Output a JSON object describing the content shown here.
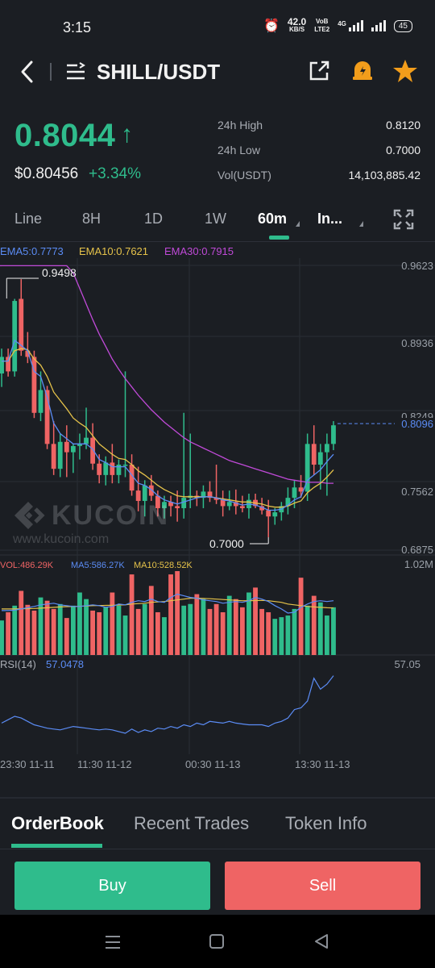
{
  "status_bar": {
    "time": "3:15",
    "net_speed": "42.0",
    "net_unit": "KB/S",
    "volte_top": "VoB",
    "volte_bottom": "LTE2",
    "network": "4G",
    "battery": "45"
  },
  "header": {
    "pair": "SHILL/USDT"
  },
  "ticker": {
    "last_price": "0.8044",
    "usd_price": "$0.80456",
    "change": "+3.34%",
    "high_label": "24h High",
    "high_value": "0.8120",
    "low_label": "24h Low",
    "low_value": "0.7000",
    "vol_label": "Vol(USDT)",
    "vol_value": "14,103,885.42"
  },
  "timeframes": [
    {
      "label": "Line"
    },
    {
      "label": "8H"
    },
    {
      "label": "1D"
    },
    {
      "label": "1W"
    },
    {
      "label": "60m"
    },
    {
      "label": "In..."
    }
  ],
  "indicators": {
    "ema5": "EMA5:0.7773",
    "ema10": "EMA10:0.7621",
    "ema30": "EMA30:0.7915",
    "high_marker": "0.9498",
    "low_marker": "0.7000",
    "watermark": "KUCOIN",
    "watermark_url": "www.kucoin.com",
    "vol": "VOL:486.29K",
    "ma5": "MA5:586.27K",
    "ma10": "MA10:528.52K",
    "vol_max": "1.02M",
    "rsi_label": "RSI(14)",
    "rsi_value": "57.0478",
    "rsi_axis": "57.05"
  },
  "price_axis": [
    "0.9623",
    "0.8936",
    "0.8249",
    "0.7562",
    "0.6875"
  ],
  "current_price_tag": "0.8096",
  "time_axis": [
    "23:30 11-11",
    "11:30 11-12",
    "00:30 11-13",
    "13:30 11-13"
  ],
  "orderbook_tabs": [
    "OrderBook",
    "Recent Trades",
    "Token Info"
  ],
  "actions": {
    "buy": "Buy",
    "sell": "Sell"
  },
  "colors": {
    "up": "#2fbc8c",
    "down": "#ef6464",
    "ema5": "#5b8cf5",
    "ema10": "#e6c34a",
    "ema30": "#c04ad8",
    "background": "#1b1e23"
  },
  "chart_data": {
    "type": "candlestick",
    "price_axis_range": [
      0.6875,
      0.9623
    ],
    "candles_ohlc": [
      [
        0.858,
        0.882,
        0.845,
        0.874
      ],
      [
        0.874,
        0.882,
        0.855,
        0.86
      ],
      [
        0.86,
        0.93,
        0.855,
        0.928
      ],
      [
        0.93,
        0.949,
        0.875,
        0.88
      ],
      [
        0.88,
        0.898,
        0.868,
        0.874
      ],
      [
        0.874,
        0.88,
        0.815,
        0.82
      ],
      [
        0.82,
        0.86,
        0.812,
        0.842
      ],
      [
        0.842,
        0.846,
        0.785,
        0.79
      ],
      [
        0.79,
        0.812,
        0.76,
        0.766
      ],
      [
        0.766,
        0.8,
        0.758,
        0.792
      ],
      [
        0.792,
        0.808,
        0.758,
        0.782
      ],
      [
        0.782,
        0.79,
        0.762,
        0.788
      ],
      [
        0.788,
        0.8,
        0.775,
        0.79
      ],
      [
        0.79,
        0.825,
        0.785,
        0.796
      ],
      [
        0.796,
        0.81,
        0.765,
        0.771
      ],
      [
        0.771,
        0.78,
        0.752,
        0.76
      ],
      [
        0.76,
        0.778,
        0.75,
        0.772
      ],
      [
        0.772,
        0.79,
        0.752,
        0.76
      ],
      [
        0.76,
        0.775,
        0.752,
        0.77
      ],
      [
        0.77,
        0.86,
        0.758,
        0.77
      ],
      [
        0.77,
        0.78,
        0.74,
        0.745
      ],
      [
        0.745,
        0.768,
        0.725,
        0.735
      ],
      [
        0.735,
        0.755,
        0.72,
        0.75
      ],
      [
        0.75,
        0.76,
        0.735,
        0.74
      ],
      [
        0.74,
        0.745,
        0.72,
        0.728
      ],
      [
        0.728,
        0.74,
        0.718,
        0.734
      ],
      [
        0.734,
        0.74,
        0.72,
        0.73
      ],
      [
        0.73,
        0.745,
        0.715,
        0.728
      ],
      [
        0.728,
        0.82,
        0.718,
        0.738
      ],
      [
        0.738,
        0.8,
        0.728,
        0.74
      ],
      [
        0.74,
        0.745,
        0.73,
        0.738
      ],
      [
        0.738,
        0.75,
        0.728,
        0.744
      ],
      [
        0.744,
        0.754,
        0.734,
        0.738
      ],
      [
        0.738,
        0.77,
        0.732,
        0.736
      ],
      [
        0.736,
        0.745,
        0.72,
        0.73
      ],
      [
        0.73,
        0.745,
        0.726,
        0.734
      ],
      [
        0.734,
        0.746,
        0.722,
        0.73
      ],
      [
        0.73,
        0.74,
        0.724,
        0.728
      ],
      [
        0.728,
        0.742,
        0.718,
        0.736
      ],
      [
        0.736,
        0.742,
        0.728,
        0.73
      ],
      [
        0.73,
        0.738,
        0.722,
        0.726
      ],
      [
        0.726,
        0.736,
        0.7,
        0.72
      ],
      [
        0.72,
        0.728,
        0.712,
        0.724
      ],
      [
        0.724,
        0.734,
        0.716,
        0.73
      ],
      [
        0.73,
        0.748,
        0.722,
        0.738
      ],
      [
        0.738,
        0.755,
        0.728,
        0.748
      ],
      [
        0.748,
        0.76,
        0.738,
        0.744
      ],
      [
        0.744,
        0.8,
        0.735,
        0.79
      ],
      [
        0.79,
        0.808,
        0.76,
        0.77
      ],
      [
        0.77,
        0.79,
        0.746,
        0.782
      ],
      [
        0.782,
        0.8,
        0.74,
        0.79
      ],
      [
        0.79,
        0.812,
        0.784,
        0.808
      ]
    ],
    "ema5": [
      0.87,
      0.87,
      0.89,
      0.885,
      0.88,
      0.86,
      0.855,
      0.835,
      0.81,
      0.8,
      0.795,
      0.79,
      0.79,
      0.79,
      0.785,
      0.775,
      0.772,
      0.768,
      0.768,
      0.768,
      0.76,
      0.752,
      0.75,
      0.746,
      0.74,
      0.736,
      0.734,
      0.732,
      0.734,
      0.736,
      0.738,
      0.739,
      0.739,
      0.738,
      0.736,
      0.735,
      0.733,
      0.731,
      0.732,
      0.731,
      0.729,
      0.726,
      0.726,
      0.727,
      0.731,
      0.736,
      0.739,
      0.755,
      0.76,
      0.765,
      0.773,
      0.78
    ],
    "ema10": [
      0.87,
      0.87,
      0.88,
      0.882,
      0.881,
      0.872,
      0.866,
      0.855,
      0.84,
      0.832,
      0.824,
      0.815,
      0.81,
      0.806,
      0.798,
      0.79,
      0.785,
      0.78,
      0.776,
      0.775,
      0.77,
      0.764,
      0.76,
      0.755,
      0.75,
      0.746,
      0.743,
      0.74,
      0.739,
      0.739,
      0.739,
      0.739,
      0.739,
      0.738,
      0.737,
      0.736,
      0.735,
      0.734,
      0.734,
      0.733,
      0.732,
      0.73,
      0.729,
      0.729,
      0.73,
      0.733,
      0.735,
      0.743,
      0.748,
      0.752,
      0.758,
      0.765
    ],
    "ema30": [
      0.962,
      0.962,
      0.962,
      0.962,
      0.962,
      0.962,
      0.962,
      0.962,
      0.962,
      0.962,
      0.962,
      0.955,
      0.94,
      0.925,
      0.91,
      0.896,
      0.884,
      0.872,
      0.862,
      0.853,
      0.845,
      0.837,
      0.83,
      0.823,
      0.817,
      0.811,
      0.806,
      0.801,
      0.796,
      0.792,
      0.789,
      0.786,
      0.783,
      0.78,
      0.777,
      0.774,
      0.772,
      0.77,
      0.768,
      0.766,
      0.764,
      0.762,
      0.76,
      0.758,
      0.756,
      0.755,
      0.754,
      0.753,
      0.753,
      0.753,
      0.752,
      0.752
    ],
    "volume_k": [
      420,
      520,
      600,
      780,
      610,
      540,
      700,
      660,
      560,
      620,
      450,
      600,
      760,
      680,
      540,
      520,
      580,
      760,
      600,
      480,
      980,
      560,
      620,
      840,
      520,
      460,
      980,
      1020,
      600,
      620,
      740,
      680,
      560,
      620,
      520,
      720,
      680,
      580,
      760,
      820,
      560,
      520,
      440,
      460,
      480,
      560,
      940,
      600,
      720,
      640,
      480,
      580
    ],
    "vol_ma5_k": [
      540,
      540,
      545,
      560,
      575,
      590,
      610,
      620,
      630,
      610,
      600,
      590,
      590,
      600,
      610,
      600,
      580,
      590,
      620,
      610,
      640,
      660,
      650,
      680,
      650,
      640,
      700,
      740,
      720,
      700,
      690,
      670,
      660,
      650,
      630,
      640,
      650,
      640,
      660,
      700,
      680,
      650,
      600,
      560,
      510,
      520,
      580,
      620,
      650,
      660,
      650,
      660
    ],
    "vol_ma10_k": [
      560,
      560,
      560,
      562,
      564,
      566,
      570,
      575,
      580,
      585,
      588,
      590,
      592,
      596,
      600,
      602,
      603,
      605,
      608,
      610,
      620,
      625,
      630,
      640,
      645,
      650,
      660,
      670,
      680,
      690,
      690,
      688,
      685,
      680,
      675,
      670,
      665,
      660,
      660,
      662,
      664,
      660,
      650,
      640,
      620,
      610,
      600,
      590,
      585,
      580,
      575,
      572
    ],
    "rsi": [
      32,
      36,
      40,
      38,
      34,
      30,
      28,
      26,
      25,
      24,
      26,
      28,
      27,
      26,
      25,
      24,
      25,
      24,
      22,
      20,
      25,
      21,
      24,
      22,
      26,
      25,
      28,
      26,
      30,
      28,
      32,
      30,
      34,
      33,
      32,
      34,
      32,
      31,
      30,
      30,
      30,
      28,
      32,
      34,
      38,
      48,
      50,
      58,
      85,
      72,
      78,
      88
    ],
    "rsi_current": 57.0478
  }
}
